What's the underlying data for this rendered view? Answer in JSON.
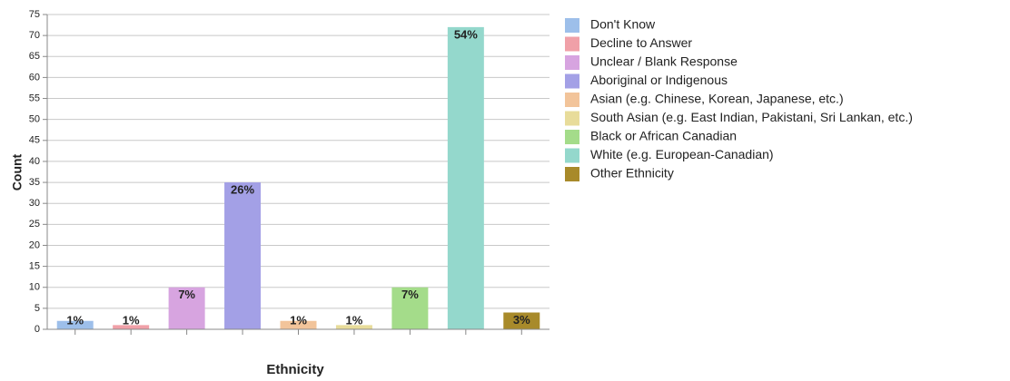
{
  "chart_data": {
    "type": "bar",
    "x_label": "Ethnicity",
    "y_label": "Count",
    "categories": [
      "Don't Know",
      "Decline to Answer",
      "Unclear / Blank Response",
      "Aboriginal or Indigenous",
      "Asian (e.g. Chinese, Korean, Japanese, etc.)",
      "South Asian (e.g. East Indian, Pakistani, Sri Lankan, etc.)",
      "Black or African Canadian",
      "White (e.g. European-Canadian)",
      "Other Ethnicity"
    ],
    "values": [
      2,
      1,
      10,
      35,
      2,
      1,
      10,
      72,
      4
    ],
    "share_labels": [
      "1%",
      "1%",
      "7%",
      "26%",
      "1%",
      "1%",
      "7%",
      "54%",
      "3%"
    ],
    "colors": [
      "#9dbfea",
      "#f0a0a8",
      "#d7a4e0",
      "#a3a0e6",
      "#f2c49a",
      "#e8dc9a",
      "#a4dc8a",
      "#94d8cc",
      "#a88a2a"
    ],
    "ylim": [
      0,
      75
    ],
    "yticks": [
      0,
      5,
      10,
      15,
      20,
      25,
      30,
      35,
      40,
      45,
      50,
      55,
      60,
      65,
      70,
      75
    ],
    "grid": true
  }
}
